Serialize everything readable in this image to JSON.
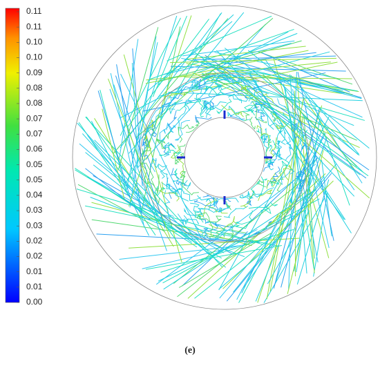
{
  "colorbar": {
    "labels": [
      "0.11",
      "0.11",
      "0.10",
      "0.10",
      "0.09",
      "0.08",
      "0.08",
      "0.07",
      "0.07",
      "0.06",
      "0.05",
      "0.05",
      "0.04",
      "0.03",
      "0.03",
      "0.02",
      "0.02",
      "0.01",
      "0.01",
      "0.00"
    ]
  },
  "caption": "(e)"
}
